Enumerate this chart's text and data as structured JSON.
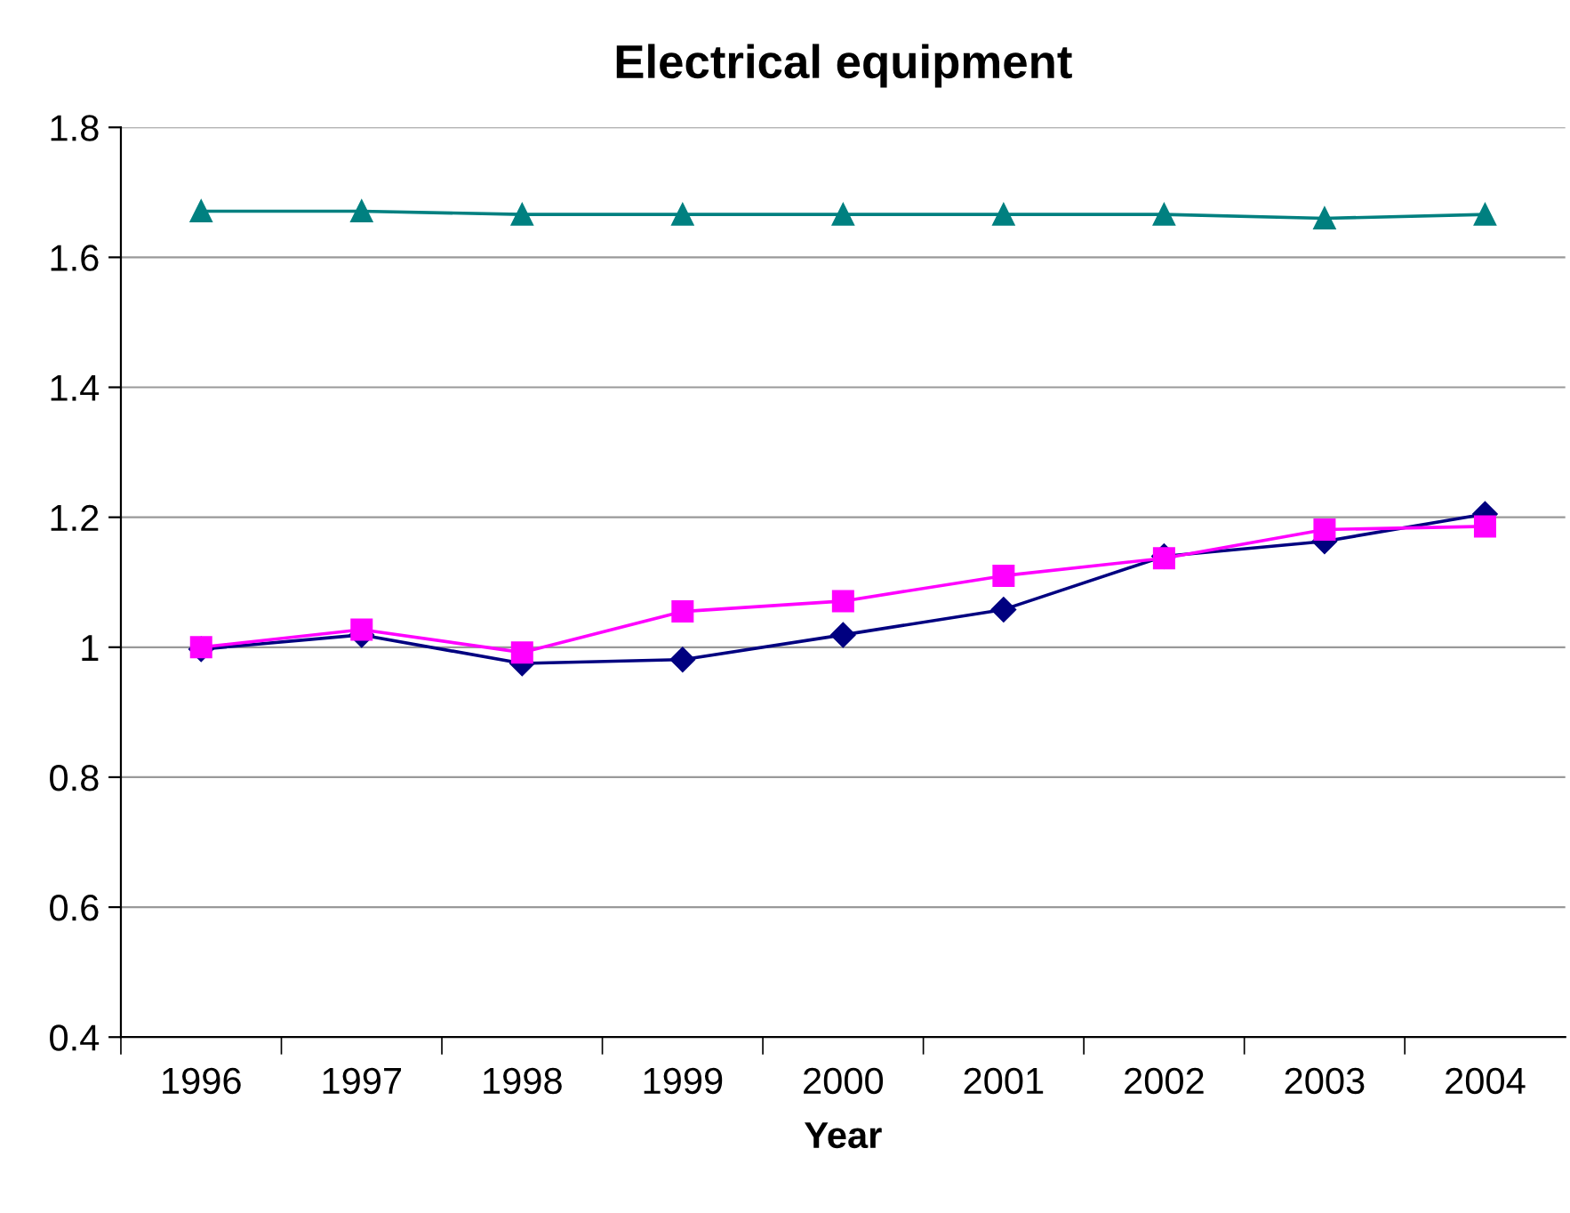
{
  "chart_data": {
    "type": "line",
    "title": "Electrical equipment",
    "xlabel": "Year",
    "categories": [
      "1996",
      "1997",
      "1998",
      "1999",
      "2000",
      "2001",
      "2002",
      "2003",
      "2004"
    ],
    "series": [
      {
        "color": "#000080",
        "marker": "diamond",
        "values": [
          0.997,
          1.019,
          0.975,
          0.981,
          1.019,
          1.058,
          1.14,
          1.163,
          1.205
        ]
      },
      {
        "color": "#ff00ff",
        "marker": "square",
        "values": [
          1.0,
          1.027,
          0.992,
          1.055,
          1.071,
          1.11,
          1.137,
          1.181,
          1.186
        ]
      },
      {
        "color": "#008080",
        "marker": "triangle",
        "values": [
          1.671,
          1.671,
          1.666,
          1.666,
          1.666,
          1.666,
          1.666,
          1.66,
          1.666
        ]
      }
    ],
    "ylim": [
      0.4,
      1.8
    ],
    "yticks": [
      0.4,
      0.6,
      0.8,
      1,
      1.2,
      1.4,
      1.6,
      1.8
    ],
    "grid": "y",
    "legend": false
  }
}
